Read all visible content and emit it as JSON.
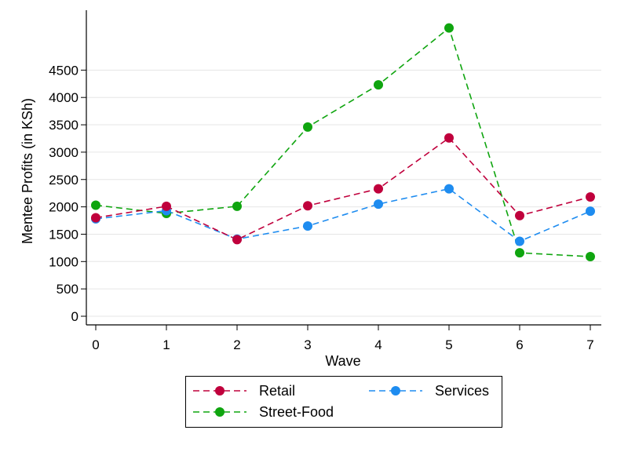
{
  "chart_data": {
    "type": "line",
    "title": "",
    "xlabel": "Wave",
    "ylabel": "Mentee Profits (in KSh)",
    "x": [
      0,
      1,
      2,
      3,
      4,
      5,
      6,
      7
    ],
    "xticks": [
      "0",
      "1",
      "2",
      "3",
      "4",
      "5",
      "6",
      "7"
    ],
    "yticks": [
      "0",
      "500",
      "1000",
      "1500",
      "2000",
      "2500",
      "3000",
      "3500",
      "4000",
      "4500"
    ],
    "xlim": [
      0,
      7
    ],
    "ylim": [
      0,
      5300
    ],
    "grid": "horizontal",
    "legend_position": "bottom",
    "series": [
      {
        "name": "Retail",
        "color": "#c0003c",
        "style": "dashed",
        "marker": "circle",
        "values": [
          1800,
          2010,
          1400,
          2020,
          2330,
          3260,
          1840,
          2180
        ]
      },
      {
        "name": "Services",
        "color": "#1e8cf0",
        "style": "dashed",
        "marker": "circle",
        "values": [
          1780,
          1930,
          1410,
          1650,
          2050,
          2330,
          1370,
          1920
        ]
      },
      {
        "name": "Street-Food",
        "color": "#0fa50f",
        "style": "dashed",
        "marker": "circle",
        "values": [
          2030,
          1880,
          2010,
          3460,
          4230,
          5270,
          1160,
          1090
        ]
      }
    ]
  }
}
